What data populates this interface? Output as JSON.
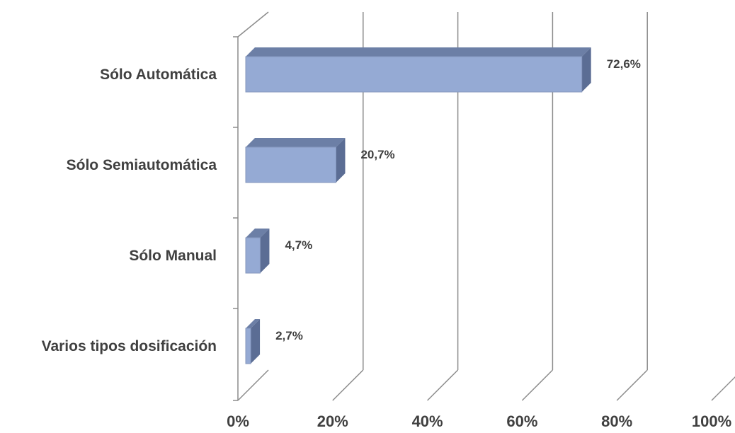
{
  "chart_data": {
    "type": "bar",
    "orientation": "horizontal",
    "style": "3d",
    "categories": [
      "Sólo Automática",
      "Sólo Semiautomática",
      "Sólo Manual",
      "Varios tipos dosificación"
    ],
    "values": [
      72.6,
      20.7,
      4.7,
      2.7
    ],
    "data_labels": [
      "72,6%",
      "20,7%",
      "4,7%",
      "2,7%"
    ],
    "x_ticks": [
      0,
      20,
      40,
      60,
      80,
      100
    ],
    "x_tick_labels": [
      "0%",
      "20%",
      "40%",
      "60%",
      "80%",
      "100%"
    ],
    "xlim": [
      0,
      100
    ],
    "title": "",
    "xlabel": "",
    "ylabel": "",
    "grid": true,
    "legend": "none",
    "colors": {
      "bar_front": "#95aad4",
      "bar_top": "#6c7fa6",
      "bar_side": "#5b6d94",
      "bar_edge": "#8597bd",
      "gridline": "#8c8c8c",
      "text": "#404040"
    }
  }
}
